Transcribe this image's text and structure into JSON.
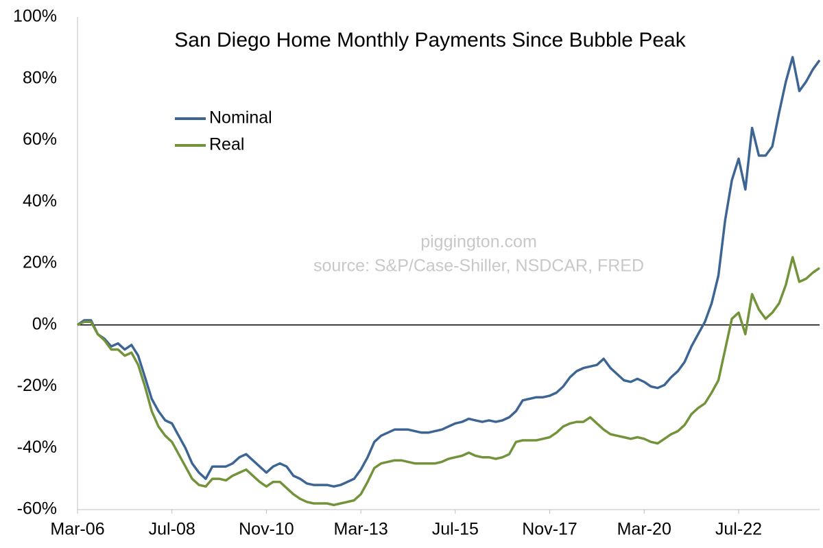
{
  "chart_data": {
    "type": "line",
    "title": "San Diego Home Monthly Payments Since Bubble Peak",
    "annotations": [
      "piggington.com",
      "source: S&P/Case-Shiller, NSDCAR, FRED"
    ],
    "categories": [
      "Mar-06",
      null,
      null,
      null,
      null,
      null,
      null,
      null,
      null,
      null,
      null,
      null,
      null,
      null,
      "Jul-08",
      null,
      null,
      null,
      null,
      null,
      null,
      null,
      null,
      null,
      null,
      null,
      null,
      null,
      "Nov-10",
      null,
      null,
      null,
      null,
      null,
      null,
      null,
      null,
      null,
      null,
      null,
      null,
      null,
      "Mar-13",
      null,
      null,
      null,
      null,
      null,
      null,
      null,
      null,
      null,
      null,
      null,
      null,
      null,
      "Jul-15",
      null,
      null,
      null,
      null,
      null,
      null,
      null,
      null,
      null,
      null,
      null,
      null,
      null,
      "Nov-17",
      null,
      null,
      null,
      null,
      null,
      null,
      null,
      null,
      null,
      null,
      null,
      null,
      null,
      "Mar-20",
      null,
      null,
      null,
      null,
      null,
      null,
      null,
      null,
      null,
      null,
      null,
      null,
      null,
      "Jul-22",
      null,
      null,
      null,
      null,
      null,
      null,
      null,
      null,
      null,
      null,
      null,
      null
    ],
    "series": [
      {
        "name": "Nominal",
        "color": "#3d6594",
        "values": [
          0,
          1.5,
          1.5,
          -3,
          -4.5,
          -7,
          -6,
          -8,
          -6.5,
          -10,
          -17,
          -24,
          -28,
          -31,
          -32,
          -36,
          -40,
          -45,
          -48,
          -50,
          -46,
          -46,
          -46,
          -45,
          -43,
          -42,
          -44,
          -46,
          -48,
          -46,
          -45,
          -46,
          -49,
          -50,
          -51.5,
          -52,
          -52,
          -52,
          -52.5,
          -52,
          -51,
          -50,
          -47,
          -43,
          -38,
          -36,
          -35,
          -34,
          -34,
          -34,
          -34.5,
          -35,
          -35,
          -34.5,
          -34,
          -33,
          -32,
          -31.5,
          -30.5,
          -31,
          -31.5,
          -31,
          -31.5,
          -31,
          -30,
          -28,
          -24.5,
          -24,
          -23.5,
          -23.5,
          -23,
          -22,
          -20,
          -17,
          -15,
          -14,
          -13.5,
          -13,
          -11,
          -14,
          -16,
          -18,
          -18.5,
          -17.5,
          -18.5,
          -20,
          -20.5,
          -19.5,
          -17,
          -15,
          -12,
          -7,
          -3,
          1,
          7,
          16,
          34,
          47,
          54,
          44,
          64,
          55,
          55,
          58,
          69,
          79,
          87,
          76,
          79,
          83,
          86
        ]
      },
      {
        "name": "Real",
        "color": "#72933a",
        "values": [
          0,
          1,
          1,
          -3,
          -5,
          -8,
          -8,
          -10,
          -9,
          -13,
          -20,
          -28,
          -33,
          -36,
          -38,
          -42,
          -46,
          -50,
          -52,
          -52.5,
          -50,
          -50,
          -50.5,
          -49,
          -48,
          -47,
          -49,
          -51,
          -52.5,
          -51,
          -51,
          -53,
          -55,
          -56.5,
          -57.5,
          -58,
          -58,
          -58,
          -58.5,
          -58,
          -57.5,
          -57,
          -55,
          -51,
          -46.5,
          -45,
          -44.5,
          -44,
          -44,
          -44.5,
          -45,
          -45,
          -45,
          -45,
          -44.5,
          -43.5,
          -43,
          -42.5,
          -41.5,
          -42.5,
          -43,
          -43,
          -43.5,
          -43,
          -42,
          -38,
          -37.5,
          -37.5,
          -37.5,
          -37,
          -36.5,
          -35,
          -33,
          -32,
          -31.5,
          -31.5,
          -30,
          -32,
          -34,
          -35.5,
          -36,
          -36.5,
          -37,
          -36.5,
          -37,
          -38,
          -38.5,
          -37,
          -35.5,
          -34.5,
          -32.5,
          -29,
          -27,
          -25.5,
          -22,
          -18,
          -8,
          2,
          4,
          -3,
          10,
          5,
          2,
          4,
          7,
          13,
          22,
          14,
          15,
          17,
          18.5
        ]
      }
    ],
    "ylim": [
      -60,
      100
    ],
    "yticks": [
      {
        "value": -60,
        "label": "-60%"
      },
      {
        "value": -40,
        "label": "-40%"
      },
      {
        "value": -20,
        "label": "-20%"
      },
      {
        "value": 0,
        "label": "0%"
      },
      {
        "value": 20,
        "label": "20%"
      },
      {
        "value": 40,
        "label": "40%"
      },
      {
        "value": 60,
        "label": "60%"
      },
      {
        "value": 80,
        "label": "80%"
      },
      {
        "value": 100,
        "label": "100%"
      }
    ],
    "grid": false,
    "legend": "upper-left"
  }
}
